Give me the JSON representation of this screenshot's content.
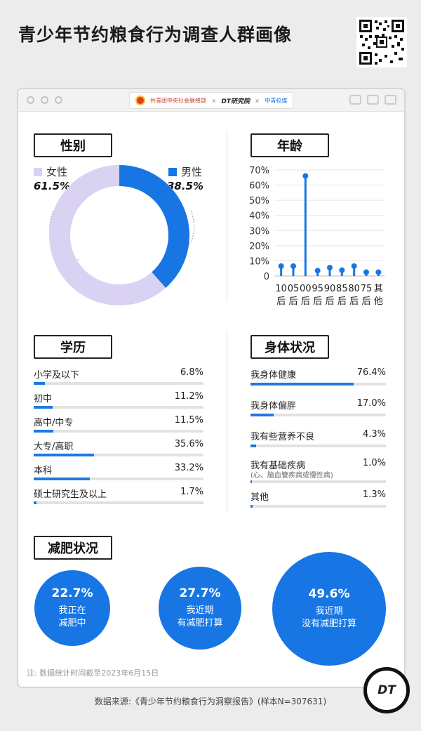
{
  "title": "青少年节约粮食行为调查人群画像",
  "logos": {
    "org": "共青团中央社会联络部",
    "x": "×",
    "dt": "DT研究院",
    "partner": "中青校媒"
  },
  "gender": {
    "heading": "性别",
    "female_label": "女性",
    "female_pct": "61.5%",
    "female_value": 61.5,
    "female_color": "#d9d2f3",
    "male_label": "男性",
    "male_pct": "38.5%",
    "male_value": 38.5,
    "male_color": "#1776e4"
  },
  "age": {
    "heading": "年龄"
  },
  "education": {
    "heading": "学历",
    "rows": [
      {
        "label": "小学及以下",
        "pct": "6.8%",
        "value": 6.8
      },
      {
        "label": "初中",
        "pct": "11.2%",
        "value": 11.2
      },
      {
        "label": "高中/中专",
        "pct": "11.5%",
        "value": 11.5
      },
      {
        "label": "大专/高职",
        "pct": "35.6%",
        "value": 35.6
      },
      {
        "label": "本科",
        "pct": "33.2%",
        "value": 33.2
      },
      {
        "label": "硕士研究生及以上",
        "pct": "1.7%",
        "value": 1.7
      }
    ]
  },
  "health": {
    "heading": "身体状况",
    "rows": [
      {
        "label": "我身体健康",
        "pct": "76.4%",
        "value": 76.4
      },
      {
        "label": "我身体偏胖",
        "pct": "17.0%",
        "value": 17.0
      },
      {
        "label": "我有些营养不良",
        "pct": "4.3%",
        "value": 4.3
      },
      {
        "label": "我有基础疾病",
        "note": "(心、脑血管疾病或慢性病)",
        "pct": "1.0%",
        "value": 1.0
      },
      {
        "label": "其他",
        "pct": "1.3%",
        "value": 1.3
      }
    ]
  },
  "diet": {
    "heading": "减肥状况",
    "items": [
      {
        "pct": "22.7%",
        "value": 22.7,
        "line1": "我正在",
        "line2": "减肥中"
      },
      {
        "pct": "27.7%",
        "value": 27.7,
        "line1": "我近期",
        "line2": "有减肥打算"
      },
      {
        "pct": "49.6%",
        "value": 49.6,
        "line1": "我近期",
        "line2": "没有减肥打算"
      }
    ]
  },
  "footnote": "注: 数据统计时间截至2023年6月15日",
  "source": "数据来源:《青少年节约粮食行为洞察报告》(样本N=307631)",
  "dt_logo": "DT",
  "chart_data": [
    {
      "type": "pie",
      "title": "性别",
      "categories": [
        "女性",
        "男性"
      ],
      "values": [
        61.5,
        38.5
      ]
    },
    {
      "type": "bar",
      "title": "年龄",
      "categories": [
        "10后",
        "05后",
        "00后",
        "95后",
        "90后",
        "85后",
        "80后",
        "75后",
        "其他"
      ],
      "values": [
        6.5,
        6.5,
        66,
        3.5,
        5.5,
        3.8,
        6.5,
        2.5,
        2.5
      ],
      "yticks": [
        "0",
        "10%",
        "20%",
        "30%",
        "40%",
        "50%",
        "60%",
        "70%"
      ],
      "ylim": [
        0,
        70
      ],
      "grid": true
    },
    {
      "type": "bar",
      "title": "学历",
      "categories": [
        "小学及以下",
        "初中",
        "高中/中专",
        "大专/高职",
        "本科",
        "硕士研究生及以上"
      ],
      "values": [
        6.8,
        11.2,
        11.5,
        35.6,
        33.2,
        1.7
      ]
    },
    {
      "type": "bar",
      "title": "身体状况",
      "categories": [
        "我身体健康",
        "我身体偏胖",
        "我有些营养不良",
        "我有基础疾病",
        "其他"
      ],
      "values": [
        76.4,
        17.0,
        4.3,
        1.0,
        1.3
      ]
    },
    {
      "type": "bar",
      "title": "减肥状况",
      "categories": [
        "我正在减肥中",
        "我近期有减肥打算",
        "我近期没有减肥打算"
      ],
      "values": [
        22.7,
        27.7,
        49.6
      ]
    }
  ]
}
